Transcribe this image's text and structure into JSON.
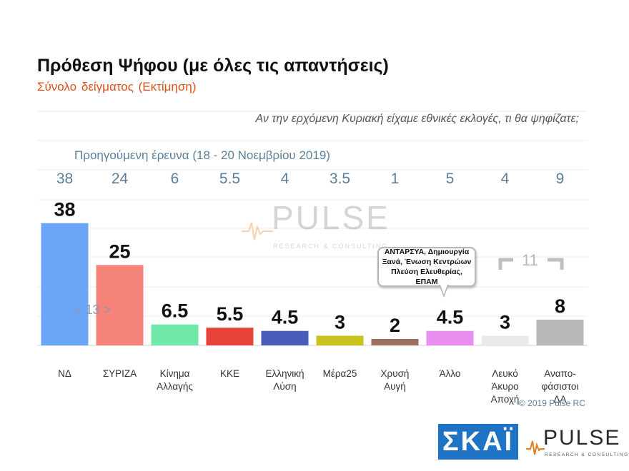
{
  "title": "Πρόθεση Ψήφου (με όλες τις απαντήσεις)",
  "subtitle": "Σύνολο δείγματος   (Εκτίμηση)",
  "question": "Αν την ερχόμενη Κυριακή είχαμε εθνικές εκλογές, τι θα ψηφίζατε;",
  "previous_survey_label": "Προηγούμενη έρευνα  (18 - 20 Νοεμβρίου  2019)",
  "callout_text": "ΑΝΤΑΡΣΥΑ, Δημιουργία Ξανά, Ένωση Κεντρώων Πλεύση Ελευθερίας, ΕΠΑΜ",
  "group_label_13": "< 13 >",
  "group_label_11": "11",
  "copyright": "© 2019 Pulse RC",
  "watermark": {
    "word": "PULSE",
    "sub": "RESEARCH & CONSULTING"
  },
  "footer_logos": {
    "skai": "ΣΚΑΪ",
    "pulse": "PULSE",
    "pulse_sub": "RESEARCH & CONSULTING"
  },
  "chart_data": {
    "type": "bar",
    "categories": [
      "ΝΔ",
      "ΣΥΡΙΖΑ",
      "Κίνημα Αλλαγής",
      "ΚΚΕ",
      "Ελληνική Λύση",
      "Μέρα25",
      "Χρυσή Αυγή",
      "Άλλο",
      "Λευκό Άκυρο Αποχή",
      "Αναπο- φάσιστοι ΔΑ"
    ],
    "values": [
      38,
      25,
      6.5,
      5.5,
      4.5,
      3,
      2,
      4.5,
      3,
      8
    ],
    "value_labels": [
      "38",
      "25",
      "6.5",
      "5.5",
      "4.5",
      "3",
      "2",
      "4.5",
      "3",
      "8"
    ],
    "previous_values": [
      "38",
      "24",
      "6",
      "5.5",
      "4",
      "3.5",
      "1",
      "5",
      "4",
      "9"
    ],
    "colors": [
      "#6aa5f6",
      "#f6837a",
      "#6fe8a9",
      "#e8413a",
      "#4a5bb8",
      "#c8c21a",
      "#9b7060",
      "#e98df0",
      "#e9e9e9",
      "#b9b9b9"
    ],
    "ylim": [
      0,
      40
    ],
    "grid": true,
    "title": "Πρόθεση Ψήφου (με όλες τις απαντήσεις)",
    "xlabel": "",
    "ylabel": ""
  }
}
